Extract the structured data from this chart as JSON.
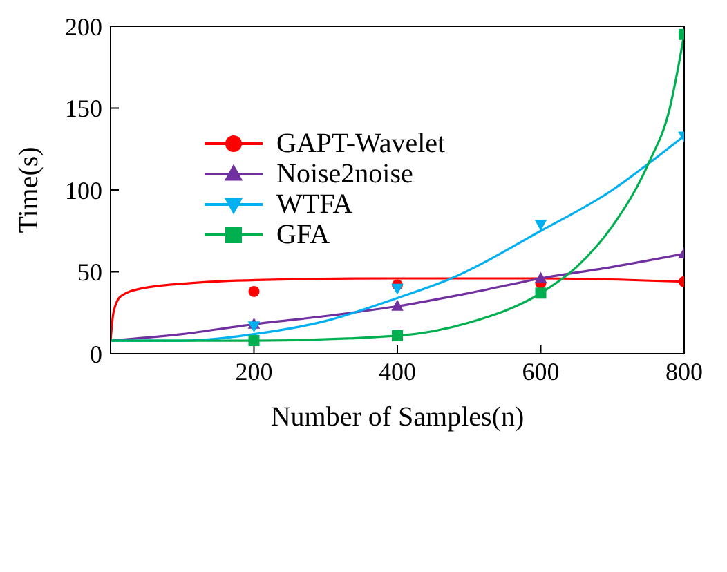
{
  "chart_data": {
    "type": "scatter",
    "xlabel": "Number of Samples(n)",
    "ylabel": "Time(s)",
    "xlim": [
      0,
      800
    ],
    "xticks": [
      200,
      400,
      600,
      800
    ],
    "ylim": [
      0,
      200
    ],
    "yticks": [
      0,
      50,
      100,
      150,
      200
    ],
    "grid": false,
    "legend": "top left",
    "series": [
      {
        "name": "GAPT-Wavelet",
        "color": "#ff0000",
        "marker": "circle",
        "x": [
          200,
          400,
          600,
          800
        ],
        "values": [
          38,
          42,
          43,
          44
        ]
      },
      {
        "name": "Noise2noise",
        "color": "#7030a0",
        "marker": "triangle",
        "x": [
          200,
          400,
          600,
          800
        ],
        "values": [
          18,
          29,
          46,
          61
        ]
      },
      {
        "name": "WTFA",
        "color": "#00b0f0",
        "marker": "triangle-down",
        "x": [
          200,
          400,
          600,
          800
        ],
        "values": [
          17,
          40,
          79,
          133
        ]
      },
      {
        "name": "GFA",
        "color": "#00b050",
        "marker": "square",
        "x": [
          200,
          400,
          600,
          800
        ],
        "values": [
          8,
          11,
          37,
          195
        ]
      },
      {
        "color": "#ff0000",
        "type": "line",
        "x": [
          0,
          4,
          14,
          45,
          108,
          204,
          392,
          600,
          800
        ],
        "values": [
          8,
          25,
          35,
          40,
          43,
          45,
          46,
          46,
          44
        ]
      },
      {
        "color": "#7030a0",
        "type": "line",
        "x": [
          0,
          100,
          200,
          300,
          400,
          500,
          600,
          700,
          800
        ],
        "values": [
          8,
          12,
          18,
          23,
          29,
          37,
          46,
          53,
          61
        ]
      },
      {
        "color": "#00b0f0",
        "type": "line",
        "x": [
          0,
          100,
          200,
          300,
          400,
          470,
          600,
          700,
          750,
          800
        ],
        "values": [
          8,
          8,
          12,
          20,
          34,
          45,
          75,
          100,
          116,
          133
        ]
      },
      {
        "color": "#00b050",
        "type": "line",
        "x": [
          0,
          200,
          400,
          500,
          600,
          650,
          700,
          750,
          780,
          800
        ],
        "values": [
          8,
          8,
          11,
          19,
          37,
          53,
          78,
          116,
          150,
          195
        ]
      }
    ]
  }
}
